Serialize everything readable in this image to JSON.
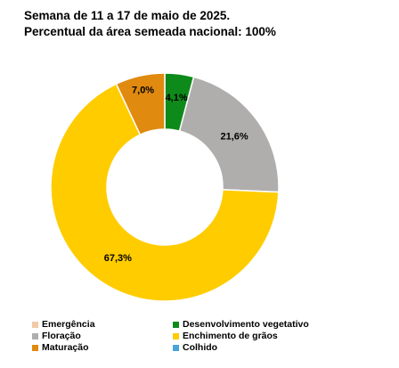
{
  "title": {
    "line1": "Semana de 11 a 17 de maio de 2025.",
    "line2": "Percentual da área semeada nacional: 100%"
  },
  "chart_data": {
    "type": "pie",
    "style": "donut",
    "categories": [
      "Emergência",
      "Desenvolvimento vegetativo",
      "Floração",
      "Enchimento de grãos",
      "Maturação",
      "Colhido"
    ],
    "values": [
      0,
      4.1,
      21.6,
      67.3,
      7.0,
      0
    ],
    "labels": [
      "",
      "4,1%",
      "21,6%",
      "67,3%",
      "7,0%",
      ""
    ],
    "colors": [
      "#f2c9a8",
      "#0e8a1a",
      "#b0adad",
      "#ffcc00",
      "#e08a10",
      "#4aa3d9"
    ],
    "legend_position": "bottom"
  },
  "legend": {
    "items": [
      {
        "label": "Emergência",
        "color": "#f2c9a8"
      },
      {
        "label": "Desenvolvimento vegetativo",
        "color": "#0e8a1a"
      },
      {
        "label": "Floração",
        "color": "#b0adad"
      },
      {
        "label": "Enchimento de grãos",
        "color": "#ffcc00"
      },
      {
        "label": "Maturação",
        "color": "#e08a10"
      },
      {
        "label": "Colhido",
        "color": "#4aa3d9"
      }
    ]
  }
}
